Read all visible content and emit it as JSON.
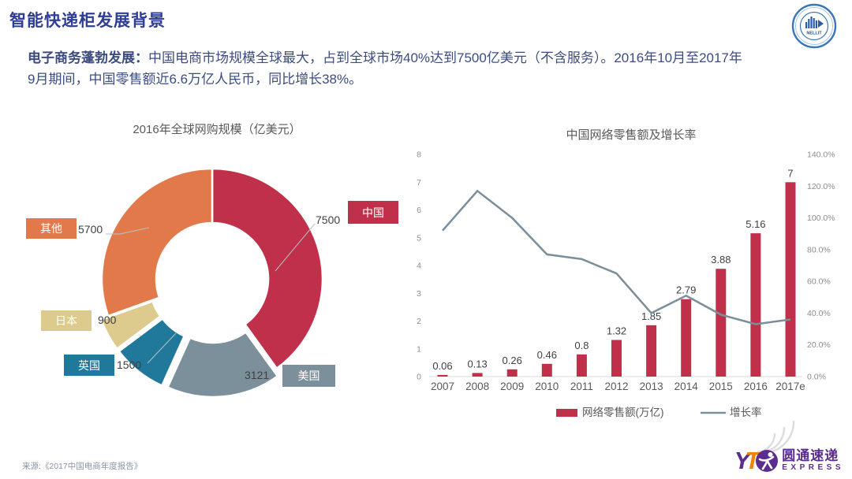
{
  "colors": {
    "title_blue": "#2f3e94",
    "body_text": "#3c4c80",
    "chart_title_gray": "#595959",
    "bar_red": "#c0304a",
    "growth_line": "#7a8f99"
  },
  "header": {
    "title": "智能快递柜发展背景",
    "badge_text": "NELLIT"
  },
  "intro": {
    "lead": "电子商务蓬勃发展：",
    "body": "中国电商市场规模全球最大，占到全球市场40%达到7500亿美元（不含服务）。2016年10月至2017年9月期间，中国零售额近6.6万亿人民币，同比增长38%。"
  },
  "chart_data": [
    {
      "type": "pie",
      "style": "donut",
      "title": "2016年全球网购规模（亿美元）",
      "segments": [
        {
          "label": "中国",
          "value": 7500,
          "color": "#c0304a",
          "exploded": false
        },
        {
          "label": "美国",
          "value": 3121,
          "color": "#7b909b",
          "exploded": true
        },
        {
          "label": "英国",
          "value": 1500,
          "color": "#20789a",
          "exploded": true
        },
        {
          "label": "日本",
          "value": 900,
          "color": "#ddca8d",
          "exploded": true
        },
        {
          "label": "其他",
          "value": 5700,
          "color": "#e2794a",
          "exploded": false
        }
      ]
    },
    {
      "type": "bar",
      "subtype": "bar+line",
      "title": "中国网络零售额及增长率",
      "categories": [
        "2007",
        "2008",
        "2009",
        "2010",
        "2011",
        "2012",
        "2013",
        "2014",
        "2015",
        "2016",
        "2017e"
      ],
      "series": [
        {
          "name": "网络零售额(万亿)",
          "type": "bar",
          "axis": "left",
          "color": "#c0304a",
          "values": [
            0.06,
            0.13,
            0.26,
            0.46,
            0.8,
            1.32,
            1.85,
            2.79,
            3.88,
            5.16,
            7
          ]
        },
        {
          "name": "增长率",
          "type": "line",
          "axis": "right",
          "color": "#7a8f99",
          "values_percent": [
            92,
            117,
            100,
            77,
            74,
            65,
            40,
            51,
            39,
            33,
            36
          ]
        }
      ],
      "left_axis": {
        "min": 0,
        "max": 8,
        "ticks": [
          "0",
          "1",
          "2",
          "3",
          "4",
          "5",
          "6",
          "7",
          "8"
        ]
      },
      "right_axis": {
        "min": 0,
        "max": 140,
        "ticks": [
          "0.0%",
          "20.0%",
          "40.0%",
          "60.0%",
          "80.0%",
          "100.0%",
          "120.0%",
          "140.0%"
        ]
      },
      "legend_position": "bottom",
      "grid": false
    }
  ],
  "footer": {
    "source": "来源:《2017中国电商年度报告》",
    "brand": {
      "y": "Y",
      "t": "T",
      "name": "圆通速递",
      "sub": "EXPRESS"
    }
  }
}
